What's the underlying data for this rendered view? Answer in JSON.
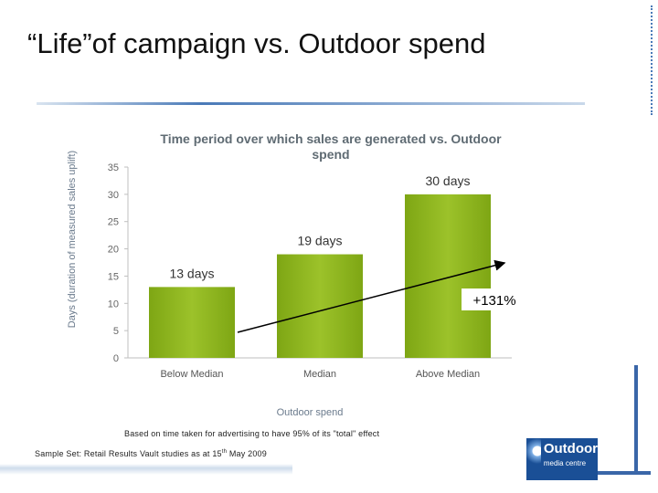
{
  "slide": {
    "title": "“Life”of campaign vs. Outdoor spend",
    "footnote": "Based on time taken for advertising to have 95% of its \"total\" effect",
    "sample_prefix": "Sample Set: Retail Results Vault studies as at 15",
    "sample_sup": "th",
    "sample_suffix": " May 2009"
  },
  "logo": {
    "line1": "Outdoor",
    "line2": "media centre",
    "accent_color": "#1a4f96"
  },
  "chart_data": {
    "type": "bar",
    "title": "Time period over which sales are generated vs. Outdoor spend",
    "xlabel": "Outdoor spend",
    "ylabel": "Days (duration of measured sales uplift)",
    "categories": [
      "Below Median",
      "Median",
      "Above Median"
    ],
    "values": [
      13,
      19,
      30
    ],
    "data_labels": [
      "13 days",
      "19 days",
      "30 days"
    ],
    "ylim": [
      0,
      35
    ],
    "yticks": [
      "0",
      "5",
      "10",
      "15",
      "20",
      "25",
      "30",
      "35"
    ],
    "bar_color": "#8fb51f",
    "title_color": "#5f6b73",
    "annotation": {
      "text": "+131%",
      "from_value": 13,
      "to_value": 30
    }
  }
}
